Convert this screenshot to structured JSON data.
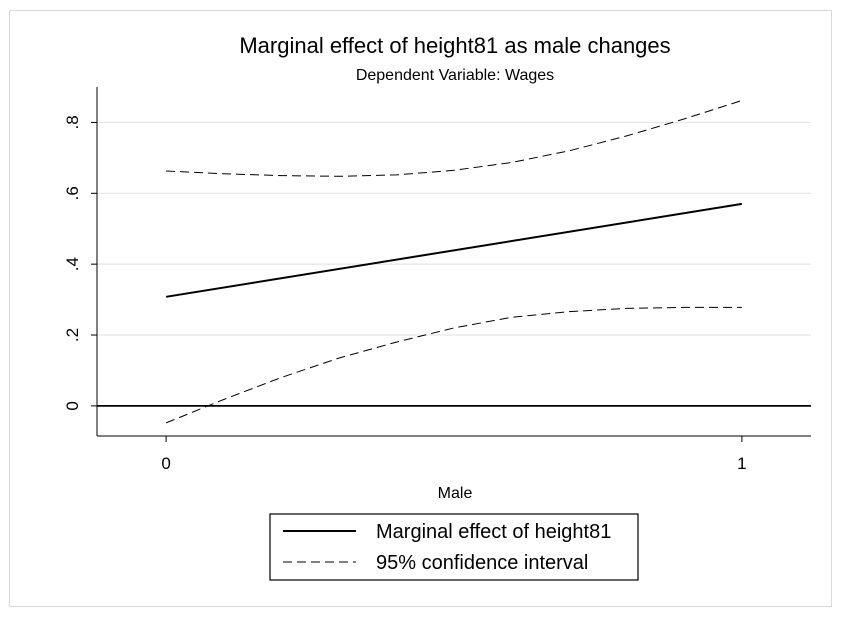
{
  "chart_data": {
    "type": "line",
    "title": "Marginal effect of height81 as male changes",
    "subtitle": "Dependent Variable: Wages",
    "xlabel": "Male",
    "ylabel": "",
    "xlim": [
      -0.12,
      1.12
    ],
    "ylim": [
      -0.085,
      0.9
    ],
    "x_ticks": [
      0,
      1
    ],
    "x_tick_labels": [
      "0",
      "1"
    ],
    "y_ticks": [
      0,
      0.2,
      0.4,
      0.6,
      0.8
    ],
    "y_tick_labels": [
      "0",
      ".2",
      ".4",
      ".6",
      ".8"
    ],
    "grid": true,
    "reference_line_y": 0,
    "legend_position": "bottom",
    "series": [
      {
        "name": "Marginal effect of height81",
        "style": "solid",
        "x": [
          0,
          1
        ],
        "y": [
          0.308,
          0.57
        ]
      },
      {
        "name": "95% confidence interval",
        "style": "dashed",
        "x": [
          0,
          0.1,
          0.2,
          0.3,
          0.4,
          0.5,
          0.6,
          0.7,
          0.8,
          0.9,
          1.0
        ],
        "y": [
          0.663,
          0.655,
          0.65,
          0.648,
          0.652,
          0.665,
          0.687,
          0.72,
          0.762,
          0.81,
          0.862
        ]
      },
      {
        "name": "",
        "style": "dashed",
        "x": [
          0,
          0.1,
          0.2,
          0.3,
          0.4,
          0.5,
          0.6,
          0.7,
          0.8,
          0.9,
          1.0
        ],
        "y": [
          -0.048,
          0.018,
          0.08,
          0.135,
          0.18,
          0.22,
          0.25,
          0.266,
          0.275,
          0.278,
          0.278
        ]
      }
    ]
  }
}
